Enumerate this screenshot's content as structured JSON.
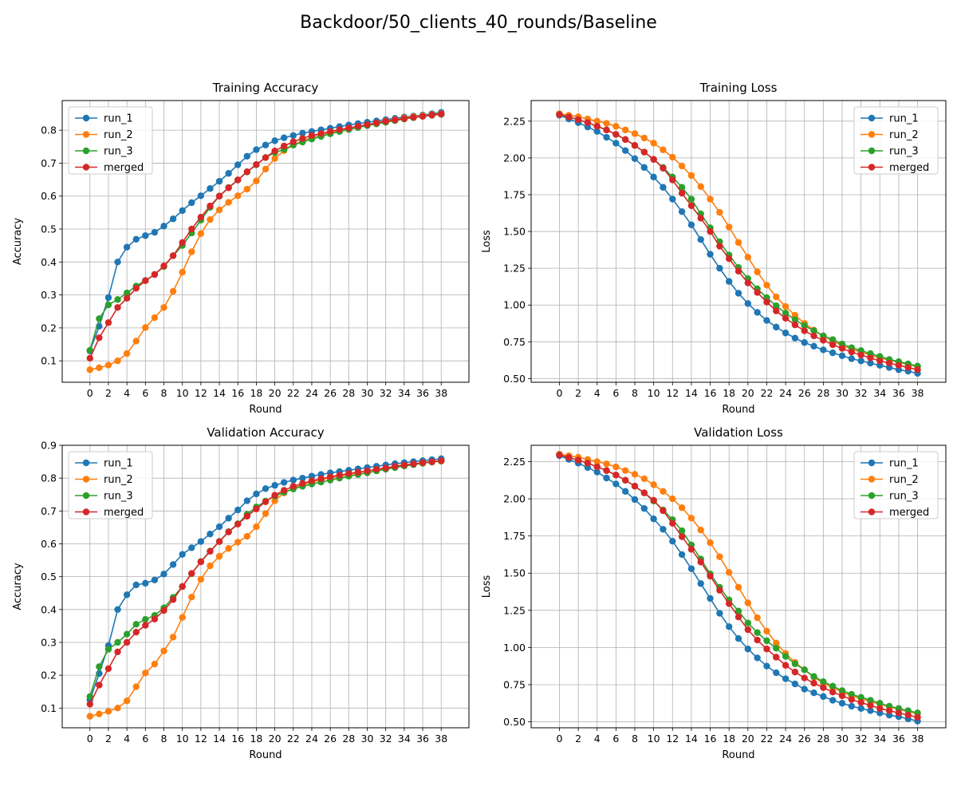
{
  "figure": {
    "suptitle": "Backdoor/50_clients_40_rounds/Baseline"
  },
  "chart_data": [
    {
      "type": "line",
      "title": "Training Accuracy",
      "xlabel": "Round",
      "ylabel": "Accuracy",
      "xlim": [
        -3,
        41
      ],
      "ylim": [
        0.035,
        0.89
      ],
      "xticks": [
        0,
        2,
        4,
        6,
        8,
        10,
        12,
        14,
        16,
        18,
        20,
        22,
        24,
        26,
        28,
        30,
        32,
        34,
        36,
        38
      ],
      "yticks": [
        0.1,
        0.2,
        0.3,
        0.4,
        0.5,
        0.6,
        0.7,
        0.8
      ],
      "ytick_labels": [
        "0.1",
        "0.2",
        "0.3",
        "0.4",
        "0.5",
        "0.6",
        "0.7",
        "0.8"
      ],
      "grid": true,
      "legend_position": "top-left",
      "x": [
        0,
        1,
        2,
        3,
        4,
        5,
        6,
        7,
        8,
        9,
        10,
        11,
        12,
        13,
        14,
        15,
        16,
        17,
        18,
        19,
        20,
        21,
        22,
        23,
        24,
        25,
        26,
        27,
        28,
        29,
        30,
        31,
        32,
        33,
        34,
        35,
        36,
        37,
        38
      ],
      "series": [
        {
          "name": "run_1",
          "color": "#1f77b4",
          "values": [
            0.13,
            0.205,
            0.292,
            0.4,
            0.445,
            0.469,
            0.48,
            0.49,
            0.509,
            0.531,
            0.556,
            0.58,
            0.601,
            0.623,
            0.645,
            0.669,
            0.695,
            0.721,
            0.741,
            0.755,
            0.768,
            0.777,
            0.784,
            0.791,
            0.796,
            0.801,
            0.806,
            0.811,
            0.816,
            0.82,
            0.824,
            0.828,
            0.832,
            0.836,
            0.84,
            0.843,
            0.846,
            0.85,
            0.854
          ]
        },
        {
          "name": "run_2",
          "color": "#ff7f0e",
          "values": [
            0.073,
            0.079,
            0.087,
            0.1,
            0.122,
            0.16,
            0.201,
            0.231,
            0.262,
            0.311,
            0.369,
            0.431,
            0.486,
            0.529,
            0.558,
            0.581,
            0.601,
            0.621,
            0.646,
            0.682,
            0.714,
            0.738,
            0.755,
            0.768,
            0.778,
            0.786,
            0.793,
            0.799,
            0.805,
            0.811,
            0.817,
            0.822,
            0.828,
            0.832,
            0.837,
            0.841,
            0.844,
            0.847,
            0.85
          ]
        },
        {
          "name": "run_3",
          "color": "#2ca02c",
          "values": [
            0.132,
            0.228,
            0.27,
            0.286,
            0.306,
            0.327,
            0.344,
            0.362,
            0.386,
            0.419,
            0.45,
            0.488,
            0.527,
            0.566,
            0.6,
            0.626,
            0.649,
            0.673,
            0.695,
            0.717,
            0.732,
            0.742,
            0.755,
            0.764,
            0.773,
            0.781,
            0.789,
            0.796,
            0.802,
            0.808,
            0.814,
            0.819,
            0.824,
            0.829,
            0.834,
            0.838,
            0.842,
            0.845,
            0.848
          ]
        },
        {
          "name": "merged",
          "color": "#d62728",
          "values": [
            0.108,
            0.17,
            0.216,
            0.262,
            0.29,
            0.32,
            0.343,
            0.362,
            0.388,
            0.419,
            0.459,
            0.5,
            0.536,
            0.57,
            0.6,
            0.625,
            0.649,
            0.674,
            0.696,
            0.717,
            0.737,
            0.752,
            0.765,
            0.775,
            0.784,
            0.79,
            0.796,
            0.802,
            0.807,
            0.812,
            0.817,
            0.822,
            0.827,
            0.831,
            0.835,
            0.839,
            0.842,
            0.846,
            0.849
          ]
        }
      ]
    },
    {
      "type": "line",
      "title": "Training Loss",
      "xlabel": "Round",
      "ylabel": "Loss",
      "xlim": [
        -3,
        41
      ],
      "ylim": [
        0.475,
        2.39
      ],
      "xticks": [
        0,
        2,
        4,
        6,
        8,
        10,
        12,
        14,
        16,
        18,
        20,
        22,
        24,
        26,
        28,
        30,
        32,
        34,
        36,
        38
      ],
      "yticks": [
        0.5,
        0.75,
        1.0,
        1.25,
        1.5,
        1.75,
        2.0,
        2.25
      ],
      "ytick_labels": [
        "0.50",
        "0.75",
        "1.00",
        "1.25",
        "1.50",
        "1.75",
        "2.00",
        "2.25"
      ],
      "grid": true,
      "legend_position": "top-right",
      "x": [
        0,
        1,
        2,
        3,
        4,
        5,
        6,
        7,
        8,
        9,
        10,
        11,
        12,
        13,
        14,
        15,
        16,
        17,
        18,
        19,
        20,
        21,
        22,
        23,
        24,
        25,
        26,
        27,
        28,
        29,
        30,
        31,
        32,
        33,
        34,
        35,
        36,
        37,
        38
      ],
      "series": [
        {
          "name": "run_1",
          "color": "#1f77b4",
          "values": [
            2.29,
            2.265,
            2.24,
            2.21,
            2.18,
            2.14,
            2.1,
            2.05,
            1.995,
            1.935,
            1.87,
            1.8,
            1.72,
            1.635,
            1.545,
            1.445,
            1.345,
            1.25,
            1.16,
            1.08,
            1.01,
            0.95,
            0.895,
            0.85,
            0.81,
            0.775,
            0.745,
            0.72,
            0.695,
            0.675,
            0.655,
            0.635,
            0.62,
            0.605,
            0.59,
            0.575,
            0.56,
            0.55,
            0.535
          ]
        },
        {
          "name": "run_2",
          "color": "#ff7f0e",
          "values": [
            2.3,
            2.29,
            2.28,
            2.265,
            2.25,
            2.235,
            2.215,
            2.19,
            2.165,
            2.135,
            2.1,
            2.055,
            2.005,
            1.945,
            1.88,
            1.805,
            1.72,
            1.63,
            1.53,
            1.425,
            1.325,
            1.225,
            1.135,
            1.055,
            0.99,
            0.93,
            0.875,
            0.83,
            0.79,
            0.755,
            0.725,
            0.7,
            0.68,
            0.66,
            0.64,
            0.625,
            0.61,
            0.595,
            0.58
          ]
        },
        {
          "name": "run_3",
          "color": "#2ca02c",
          "values": [
            2.295,
            2.278,
            2.26,
            2.24,
            2.215,
            2.19,
            2.16,
            2.125,
            2.085,
            2.04,
            1.99,
            1.935,
            1.87,
            1.8,
            1.72,
            1.62,
            1.525,
            1.43,
            1.34,
            1.255,
            1.18,
            1.11,
            1.05,
            0.995,
            0.945,
            0.9,
            0.86,
            0.825,
            0.79,
            0.765,
            0.735,
            0.71,
            0.69,
            0.67,
            0.65,
            0.63,
            0.615,
            0.6,
            0.585
          ]
        },
        {
          "name": "merged",
          "color": "#d62728",
          "values": [
            2.295,
            2.278,
            2.26,
            2.24,
            2.215,
            2.19,
            2.16,
            2.125,
            2.085,
            2.04,
            1.99,
            1.93,
            1.85,
            1.76,
            1.675,
            1.59,
            1.5,
            1.4,
            1.315,
            1.23,
            1.15,
            1.085,
            1.02,
            0.96,
            0.91,
            0.865,
            0.825,
            0.79,
            0.76,
            0.73,
            0.705,
            0.68,
            0.66,
            0.64,
            0.62,
            0.605,
            0.59,
            0.575,
            0.56
          ]
        }
      ]
    },
    {
      "type": "line",
      "title": "Validation Accuracy",
      "xlabel": "Round",
      "ylabel": "Accuracy",
      "xlim": [
        -3,
        41
      ],
      "ylim": [
        0.04,
        0.9
      ],
      "xticks": [
        0,
        2,
        4,
        6,
        8,
        10,
        12,
        14,
        16,
        18,
        20,
        22,
        24,
        26,
        28,
        30,
        32,
        34,
        36,
        38
      ],
      "yticks": [
        0.1,
        0.2,
        0.3,
        0.4,
        0.5,
        0.6,
        0.7,
        0.8,
        0.9
      ],
      "ytick_labels": [
        "0.1",
        "0.2",
        "0.3",
        "0.4",
        "0.5",
        "0.6",
        "0.7",
        "0.8",
        "0.9"
      ],
      "grid": true,
      "legend_position": "top-left",
      "x": [
        0,
        1,
        2,
        3,
        4,
        5,
        6,
        7,
        8,
        9,
        10,
        11,
        12,
        13,
        14,
        15,
        16,
        17,
        18,
        19,
        20,
        21,
        22,
        23,
        24,
        25,
        26,
        27,
        28,
        29,
        30,
        31,
        32,
        33,
        34,
        35,
        36,
        37,
        38
      ],
      "series": [
        {
          "name": "run_1",
          "color": "#1f77b4",
          "values": [
            0.125,
            0.205,
            0.29,
            0.4,
            0.445,
            0.475,
            0.48,
            0.49,
            0.508,
            0.537,
            0.568,
            0.588,
            0.607,
            0.63,
            0.652,
            0.678,
            0.703,
            0.731,
            0.752,
            0.768,
            0.778,
            0.787,
            0.794,
            0.8,
            0.806,
            0.811,
            0.816,
            0.82,
            0.824,
            0.828,
            0.832,
            0.836,
            0.84,
            0.844,
            0.847,
            0.85,
            0.853,
            0.856,
            0.859
          ]
        },
        {
          "name": "run_2",
          "color": "#ff7f0e",
          "values": [
            0.075,
            0.082,
            0.09,
            0.1,
            0.122,
            0.165,
            0.207,
            0.234,
            0.274,
            0.316,
            0.376,
            0.438,
            0.492,
            0.533,
            0.562,
            0.586,
            0.605,
            0.623,
            0.652,
            0.692,
            0.731,
            0.755,
            0.77,
            0.78,
            0.788,
            0.795,
            0.801,
            0.806,
            0.811,
            0.816,
            0.821,
            0.826,
            0.831,
            0.835,
            0.839,
            0.843,
            0.846,
            0.849,
            0.852
          ]
        },
        {
          "name": "run_3",
          "color": "#2ca02c",
          "values": [
            0.135,
            0.226,
            0.279,
            0.3,
            0.325,
            0.355,
            0.37,
            0.382,
            0.405,
            0.437,
            0.47,
            0.509,
            0.546,
            0.578,
            0.607,
            0.637,
            0.661,
            0.69,
            0.712,
            0.73,
            0.745,
            0.757,
            0.767,
            0.775,
            0.782,
            0.788,
            0.794,
            0.8,
            0.806,
            0.811,
            0.816,
            0.822,
            0.827,
            0.832,
            0.837,
            0.841,
            0.845,
            0.849,
            0.852
          ]
        },
        {
          "name": "merged",
          "color": "#d62728",
          "values": [
            0.112,
            0.17,
            0.22,
            0.271,
            0.3,
            0.331,
            0.352,
            0.371,
            0.397,
            0.43,
            0.47,
            0.51,
            0.545,
            0.577,
            0.607,
            0.636,
            0.66,
            0.684,
            0.706,
            0.728,
            0.748,
            0.763,
            0.775,
            0.784,
            0.792,
            0.798,
            0.804,
            0.809,
            0.814,
            0.818,
            0.822,
            0.827,
            0.831,
            0.836,
            0.84,
            0.843,
            0.847,
            0.85,
            0.853
          ]
        }
      ]
    },
    {
      "type": "line",
      "title": "Validation Loss",
      "xlabel": "Round",
      "ylabel": "Loss",
      "xlim": [
        -3,
        41
      ],
      "ylim": [
        0.46,
        2.36
      ],
      "xticks": [
        0,
        2,
        4,
        6,
        8,
        10,
        12,
        14,
        16,
        18,
        20,
        22,
        24,
        26,
        28,
        30,
        32,
        34,
        36,
        38
      ],
      "yticks": [
        0.5,
        0.75,
        1.0,
        1.25,
        1.5,
        1.75,
        2.0,
        2.25
      ],
      "ytick_labels": [
        "0.50",
        "0.75",
        "1.00",
        "1.25",
        "1.50",
        "1.75",
        "2.00",
        "2.25"
      ],
      "grid": true,
      "legend_position": "top-right",
      "x": [
        0,
        1,
        2,
        3,
        4,
        5,
        6,
        7,
        8,
        9,
        10,
        11,
        12,
        13,
        14,
        15,
        16,
        17,
        18,
        19,
        20,
        21,
        22,
        23,
        24,
        25,
        26,
        27,
        28,
        29,
        30,
        31,
        32,
        33,
        34,
        35,
        36,
        37,
        38
      ],
      "series": [
        {
          "name": "run_1",
          "color": "#1f77b4",
          "values": [
            2.29,
            2.265,
            2.24,
            2.21,
            2.18,
            2.14,
            2.1,
            2.05,
            1.995,
            1.935,
            1.865,
            1.795,
            1.715,
            1.625,
            1.53,
            1.43,
            1.33,
            1.23,
            1.14,
            1.06,
            0.99,
            0.93,
            0.875,
            0.83,
            0.79,
            0.755,
            0.72,
            0.695,
            0.67,
            0.645,
            0.625,
            0.605,
            0.59,
            0.575,
            0.56,
            0.545,
            0.535,
            0.52,
            0.505
          ]
        },
        {
          "name": "run_2",
          "color": "#ff7f0e",
          "values": [
            2.3,
            2.29,
            2.28,
            2.265,
            2.25,
            2.235,
            2.215,
            2.19,
            2.165,
            2.135,
            2.095,
            2.05,
            2.0,
            1.94,
            1.87,
            1.79,
            1.705,
            1.61,
            1.505,
            1.405,
            1.3,
            1.2,
            1.11,
            1.03,
            0.96,
            0.9,
            0.85,
            0.8,
            0.76,
            0.73,
            0.7,
            0.675,
            0.655,
            0.635,
            0.62,
            0.6,
            0.585,
            0.57,
            0.555
          ]
        },
        {
          "name": "run_3",
          "color": "#2ca02c",
          "values": [
            2.295,
            2.278,
            2.26,
            2.24,
            2.215,
            2.19,
            2.16,
            2.125,
            2.085,
            2.04,
            1.985,
            1.925,
            1.86,
            1.785,
            1.69,
            1.595,
            1.495,
            1.405,
            1.32,
            1.245,
            1.165,
            1.1,
            1.045,
            0.995,
            0.94,
            0.89,
            0.85,
            0.805,
            0.77,
            0.74,
            0.71,
            0.685,
            0.665,
            0.645,
            0.625,
            0.605,
            0.59,
            0.575,
            0.56
          ]
        },
        {
          "name": "merged",
          "color": "#d62728",
          "values": [
            2.295,
            2.278,
            2.26,
            2.24,
            2.215,
            2.19,
            2.16,
            2.125,
            2.085,
            2.04,
            1.99,
            1.92,
            1.835,
            1.745,
            1.66,
            1.575,
            1.48,
            1.385,
            1.295,
            1.205,
            1.12,
            1.05,
            0.99,
            0.935,
            0.88,
            0.835,
            0.795,
            0.76,
            0.73,
            0.7,
            0.675,
            0.65,
            0.63,
            0.61,
            0.59,
            0.575,
            0.56,
            0.545,
            0.53
          ]
        }
      ]
    }
  ]
}
